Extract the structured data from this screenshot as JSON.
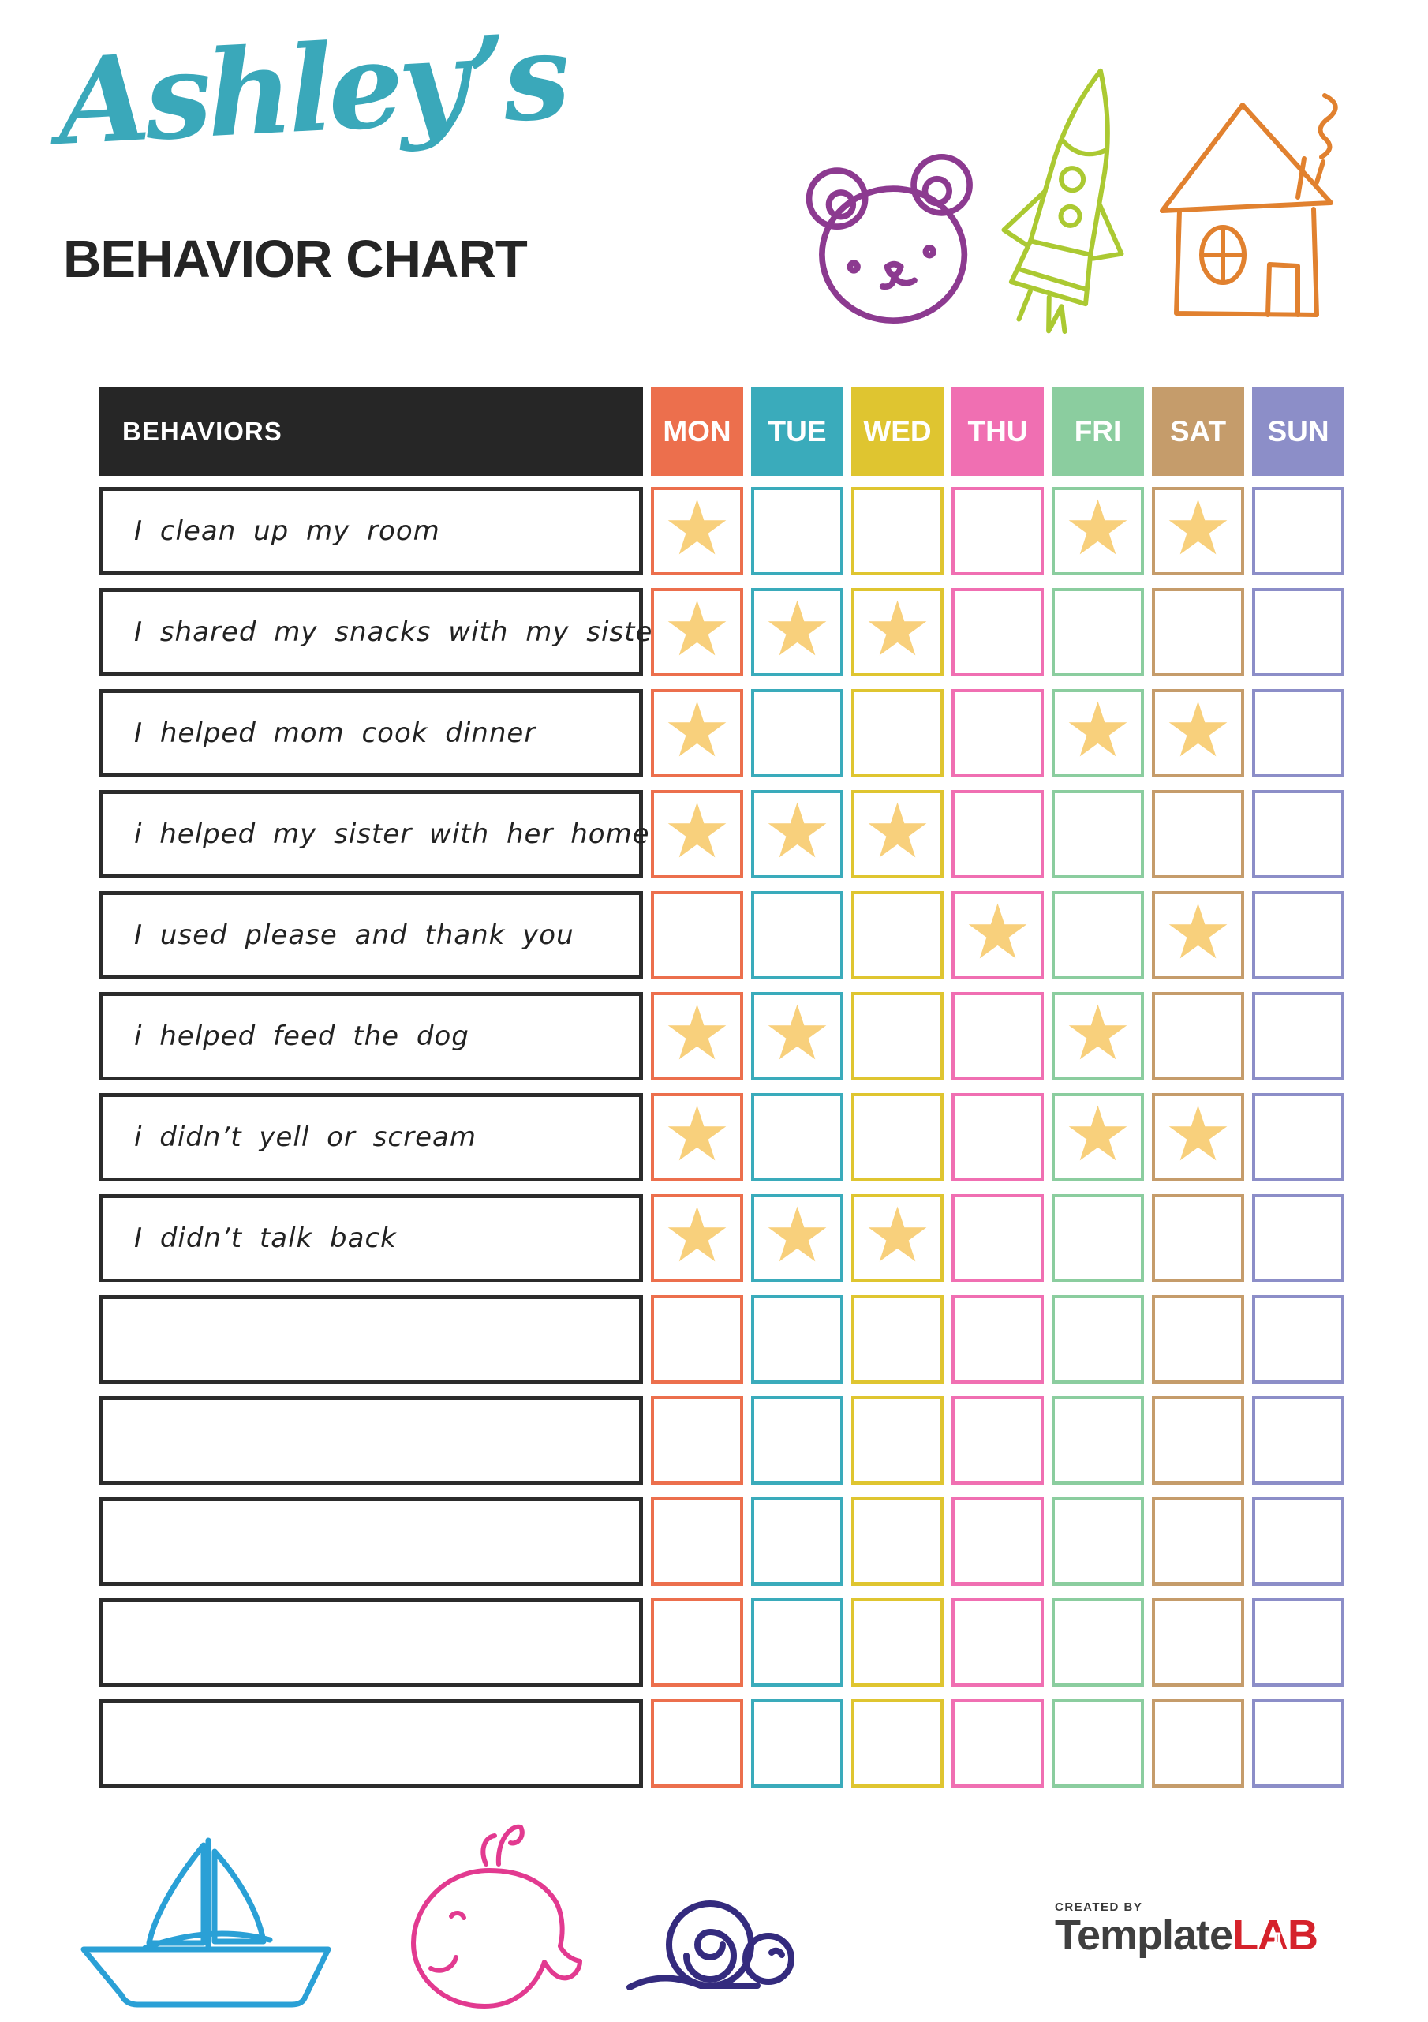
{
  "header": {
    "script_title": "Ashley’s",
    "script_title_color": "#3aa8ba",
    "main_title": "BEHAVIOR CHART",
    "main_title_color": "#252525"
  },
  "table": {
    "behaviors_header": "BEHAVIORS",
    "header_bg": "#262626",
    "star_glyph": "★",
    "star_color": "#f8d07c",
    "days": [
      {
        "label": "MON",
        "color": "#ec6f4d"
      },
      {
        "label": "TUE",
        "color": "#3aabbb"
      },
      {
        "label": "WED",
        "color": "#dfc530"
      },
      {
        "label": "THU",
        "color": "#f06fb2"
      },
      {
        "label": "FRI",
        "color": "#8bcd9f"
      },
      {
        "label": "SAT",
        "color": "#c59c6b"
      },
      {
        "label": "SUN",
        "color": "#8c8ec8"
      }
    ],
    "rows": [
      {
        "behavior": "I clean up my room",
        "stars": [
          1,
          0,
          0,
          0,
          1,
          1,
          0
        ]
      },
      {
        "behavior": "I shared my snacks with my sister",
        "stars": [
          1,
          1,
          1,
          0,
          0,
          0,
          0
        ]
      },
      {
        "behavior": "I helped mom cook dinner",
        "stars": [
          1,
          0,
          0,
          0,
          1,
          1,
          0
        ]
      },
      {
        "behavior": "i helped my sister with her homework",
        "stars": [
          1,
          1,
          1,
          0,
          0,
          0,
          0
        ]
      },
      {
        "behavior": "I used please and thank you",
        "stars": [
          0,
          0,
          0,
          1,
          0,
          1,
          0
        ]
      },
      {
        "behavior": "i helped feed the dog",
        "stars": [
          1,
          1,
          0,
          0,
          1,
          0,
          0
        ]
      },
      {
        "behavior": "i didn’t yell or scream",
        "stars": [
          1,
          0,
          0,
          0,
          1,
          1,
          0
        ]
      },
      {
        "behavior": "I didn’t talk back",
        "stars": [
          1,
          1,
          1,
          0,
          0,
          0,
          0
        ]
      },
      {
        "behavior": "",
        "stars": [
          0,
          0,
          0,
          0,
          0,
          0,
          0
        ]
      },
      {
        "behavior": "",
        "stars": [
          0,
          0,
          0,
          0,
          0,
          0,
          0
        ]
      },
      {
        "behavior": "",
        "stars": [
          0,
          0,
          0,
          0,
          0,
          0,
          0
        ]
      },
      {
        "behavior": "",
        "stars": [
          0,
          0,
          0,
          0,
          0,
          0,
          0
        ]
      },
      {
        "behavior": "",
        "stars": [
          0,
          0,
          0,
          0,
          0,
          0,
          0
        ]
      }
    ]
  },
  "decorations": {
    "bear": {
      "color": "#8c3a90"
    },
    "rocket": {
      "color": "#abc932"
    },
    "house": {
      "color": "#e1812f"
    },
    "boat": {
      "color": "#2aa0d6"
    },
    "whale": {
      "color": "#e23a90"
    },
    "snail": {
      "color": "#342b7e"
    }
  },
  "footer": {
    "created_by": "CREATED BY",
    "brand_primary": "Template",
    "brand_accent": "LAB",
    "brand_primary_color": "#3f3f3f",
    "brand_accent_color": "#d5222b"
  }
}
